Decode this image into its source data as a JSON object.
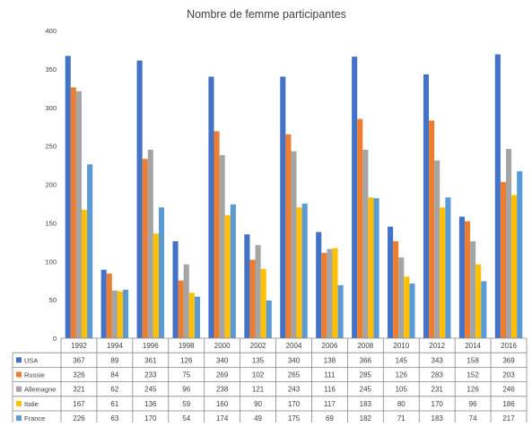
{
  "chart_data": {
    "type": "bar",
    "title": "Nombre de femme participantes",
    "categories": [
      "1992",
      "1994",
      "1996",
      "1998",
      "2000",
      "2002",
      "2004",
      "2006",
      "2008",
      "2010",
      "2012",
      "2014",
      "2016"
    ],
    "series": [
      {
        "name": "USA",
        "color": "#4472C4",
        "values": [
          367,
          89,
          361,
          126,
          340,
          135,
          340,
          138,
          366,
          145,
          343,
          158,
          369
        ]
      },
      {
        "name": "Russie",
        "color": "#ED7D31",
        "values": [
          326,
          84,
          233,
          75,
          269,
          102,
          265,
          111,
          285,
          126,
          283,
          152,
          203
        ]
      },
      {
        "name": "Allemagne",
        "color": "#A5A5A5",
        "values": [
          321,
          62,
          245,
          96,
          238,
          121,
          243,
          116,
          245,
          105,
          231,
          126,
          246
        ]
      },
      {
        "name": "Italie",
        "color": "#FFC000",
        "values": [
          167,
          61,
          136,
          59,
          160,
          90,
          170,
          117,
          183,
          80,
          170,
          96,
          186
        ]
      },
      {
        "name": "France",
        "color": "#5B9BD5",
        "values": [
          226,
          63,
          170,
          54,
          174,
          49,
          175,
          69,
          182,
          71,
          183,
          74,
          217
        ]
      }
    ],
    "ylim": [
      0,
      400
    ],
    "yticks": [
      0,
      50,
      100,
      150,
      200,
      250,
      300,
      350,
      400
    ],
    "grid": false,
    "legend": "data-table"
  }
}
